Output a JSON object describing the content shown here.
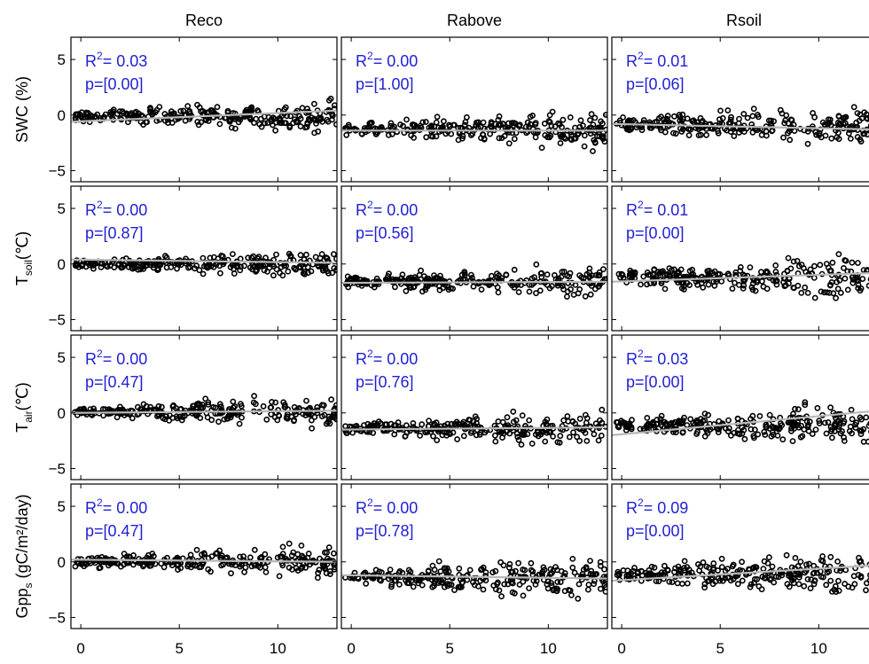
{
  "chart_data": {
    "type": "scatter",
    "layout": "grid 4 rows x 3 columns of scatter panels with linear fit lines",
    "columns": [
      "Reco",
      "Rabove",
      "Rsoil"
    ],
    "rows": [
      {
        "key": "swc",
        "label": "SWC (%)"
      },
      {
        "key": "tsoil",
        "label_main": "T",
        "label_sub": "soil",
        "label_suffix": "(℃)"
      },
      {
        "key": "tair",
        "label_main": "T",
        "label_sub": "air",
        "label_suffix": "(℃)"
      },
      {
        "key": "gpp",
        "label_main": "Gpp",
        "label_sub": "s",
        "label_suffix": " (gC/m²/day)"
      }
    ],
    "xlim": [
      -0.5,
      13
    ],
    "ylim": [
      -6,
      7
    ],
    "xticks": [
      0,
      5,
      10
    ],
    "yticks": [
      -5,
      0,
      5
    ],
    "stat_prefix_r": "R",
    "stat_sup": "2",
    "panels": [
      {
        "row": 0,
        "col": 0,
        "r2": "= 0.03",
        "p": "p=[0.00]",
        "fit": [
          [
            -0.5,
            -0.6
          ],
          [
            13,
            0.4
          ]
        ],
        "center": -0.1,
        "spread": 1.4
      },
      {
        "row": 0,
        "col": 1,
        "r2": "= 0.00",
        "p": "p=[1.00]",
        "fit": [
          [
            -0.5,
            -1.4
          ],
          [
            13,
            -1.4
          ]
        ],
        "center": -1.3,
        "spread": 1.6
      },
      {
        "row": 0,
        "col": 2,
        "r2": "= 0.01",
        "p": "p=[0.06]",
        "fit": [
          [
            -0.5,
            -0.8
          ],
          [
            13,
            -1.3
          ]
        ],
        "center": -0.9,
        "spread": 1.8
      },
      {
        "row": 1,
        "col": 0,
        "r2": "= 0.00",
        "p": "p=[0.87]",
        "fit": [
          [
            -0.5,
            0.4
          ],
          [
            13,
            0.1
          ]
        ],
        "center": 0.0,
        "spread": 1.2
      },
      {
        "row": 1,
        "col": 1,
        "r2": "= 0.00",
        "p": "p=[0.56]",
        "fit": [
          [
            -0.5,
            -1.7
          ],
          [
            13,
            -1.6
          ]
        ],
        "center": -1.6,
        "spread": 1.4
      },
      {
        "row": 1,
        "col": 2,
        "r2": "= 0.01",
        "p": "p=[0.00]",
        "fit": [
          [
            -0.5,
            -1.6
          ],
          [
            13,
            -0.8
          ]
        ],
        "center": -1.2,
        "spread": 1.9
      },
      {
        "row": 2,
        "col": 0,
        "r2": "= 0.00",
        "p": "p=[0.47]",
        "fit": [
          [
            -0.5,
            0.0
          ],
          [
            13,
            0.2
          ]
        ],
        "center": 0.1,
        "spread": 1.3
      },
      {
        "row": 2,
        "col": 1,
        "r2": "= 0.00",
        "p": "p=[0.76]",
        "fit": [
          [
            -0.5,
            -1.5
          ],
          [
            13,
            -1.3
          ]
        ],
        "center": -1.4,
        "spread": 1.5
      },
      {
        "row": 2,
        "col": 2,
        "r2": "= 0.03",
        "p": "p=[0.00]",
        "fit": [
          [
            -0.5,
            -2.0
          ],
          [
            13,
            0.2
          ]
        ],
        "center": -1.1,
        "spread": 1.8
      },
      {
        "row": 3,
        "col": 0,
        "r2": "= 0.00",
        "p": "p=[0.47]",
        "fit": [
          [
            -0.5,
            0.2
          ],
          [
            13,
            0.0
          ]
        ],
        "center": 0.0,
        "spread": 1.4
      },
      {
        "row": 3,
        "col": 1,
        "r2": "= 0.00",
        "p": "p=[0.78]",
        "fit": [
          [
            -0.5,
            -1.2
          ],
          [
            13,
            -1.5
          ]
        ],
        "center": -1.4,
        "spread": 1.8
      },
      {
        "row": 3,
        "col": 2,
        "r2": "= 0.09",
        "p": "p=[0.00]",
        "fit": [
          [
            -0.5,
            -1.7
          ],
          [
            13,
            -0.3
          ]
        ],
        "center": -1.1,
        "spread": 2.0
      }
    ],
    "grid": false,
    "legend": "none",
    "colors": {
      "points": "#000000",
      "fit_line": "#b8b8b8",
      "stats_text": "#1f1fd6"
    }
  }
}
